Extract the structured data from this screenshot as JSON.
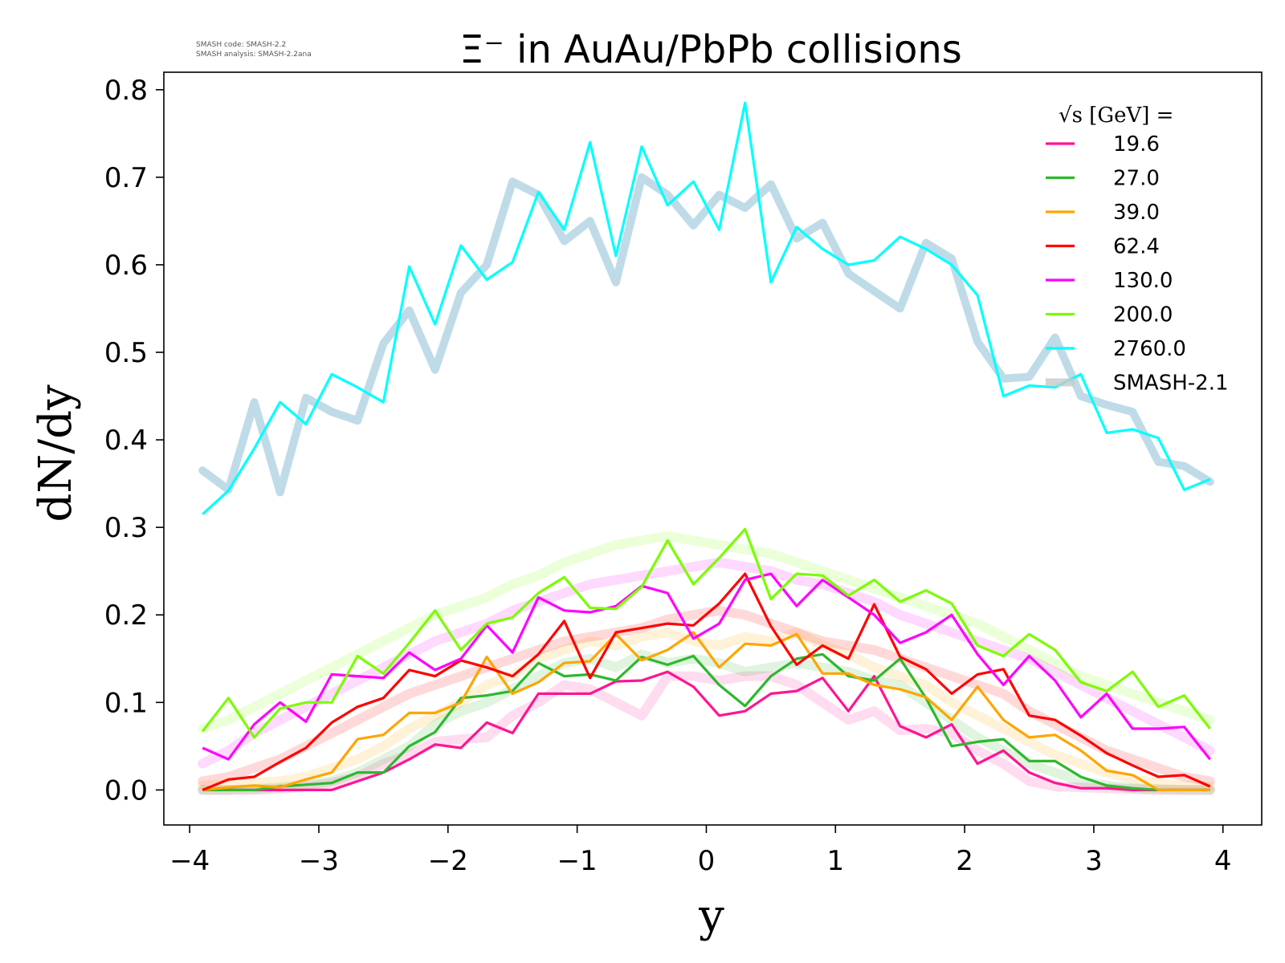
{
  "chart_data": {
    "type": "line",
    "title": "Ξ⁻ in AuAu/PbPb collisions",
    "xlabel": "y",
    "ylabel": "dN/dy",
    "xlim": [
      -4.2,
      4.3
    ],
    "ylim": [
      -0.04,
      0.82
    ],
    "xticks": [
      "−4",
      "−3",
      "−2",
      "−1",
      "0",
      "1",
      "2",
      "3",
      "4"
    ],
    "yticks": [
      "0.0",
      "0.1",
      "0.2",
      "0.3",
      "0.4",
      "0.5",
      "0.6",
      "0.7",
      "0.8"
    ],
    "grid": false,
    "legend_position": "top-right",
    "legend_title": "√s [GeV] =",
    "annotation": {
      "line1": "SMASH code:      SMASH-2.2",
      "line2": "SMASH analysis: SMASH-2.2ana"
    },
    "x": [
      -3.9,
      -3.7,
      -3.5,
      -3.3,
      -3.1,
      -2.9,
      -2.7,
      -2.5,
      -2.3,
      -2.1,
      -1.9,
      -1.7,
      -1.5,
      -1.3,
      -1.1,
      -0.9,
      -0.7,
      -0.5,
      -0.3,
      -0.1,
      0.1,
      0.3,
      0.5,
      0.7,
      0.9,
      1.1,
      1.3,
      1.5,
      1.7,
      1.9,
      2.1,
      2.3,
      2.5,
      2.7,
      2.9,
      3.1,
      3.3,
      3.5,
      3.7,
      3.9
    ],
    "series": [
      {
        "name": "19.6",
        "color": "#ff1493",
        "values": [
          0.0,
          0.0,
          0.0,
          0.0,
          0.0,
          0.0,
          0.01,
          0.02,
          0.035,
          0.052,
          0.048,
          0.077,
          0.065,
          0.11,
          0.11,
          0.11,
          0.124,
          0.125,
          0.135,
          0.118,
          0.085,
          0.09,
          0.11,
          0.113,
          0.128,
          0.09,
          0.13,
          0.073,
          0.06,
          0.075,
          0.03,
          0.045,
          0.02,
          0.008,
          0.002,
          0.002,
          0.0,
          0.0,
          0.0,
          0.0
        ],
        "reference": [
          0.0,
          0.0,
          0.0,
          0.001,
          0.004,
          0.008,
          0.015,
          0.03,
          0.04,
          0.055,
          0.058,
          0.06,
          0.085,
          0.1,
          0.12,
          0.115,
          0.1,
          0.085,
          0.13,
          0.13,
          0.125,
          0.13,
          0.13,
          0.12,
          0.1,
          0.08,
          0.09,
          0.068,
          0.07,
          0.065,
          0.045,
          0.03,
          0.01,
          0.004,
          0.003,
          0.002,
          0.001,
          0.0,
          0.0,
          0.0
        ]
      },
      {
        "name": "27.0",
        "color": "#2db82d",
        "values": [
          0.0,
          0.0,
          0.0,
          0.004,
          0.006,
          0.008,
          0.02,
          0.02,
          0.05,
          0.066,
          0.105,
          0.108,
          0.113,
          0.145,
          0.13,
          0.132,
          0.125,
          0.152,
          0.143,
          0.153,
          0.12,
          0.096,
          0.13,
          0.15,
          0.155,
          0.13,
          0.125,
          0.15,
          0.105,
          0.05,
          0.055,
          0.058,
          0.033,
          0.033,
          0.015,
          0.005,
          0.002,
          0.0,
          0.0,
          0.0
        ],
        "reference": [
          0.0,
          0.0,
          0.001,
          0.003,
          0.006,
          0.01,
          0.02,
          0.035,
          0.05,
          0.075,
          0.09,
          0.1,
          0.115,
          0.13,
          0.145,
          0.15,
          0.14,
          0.155,
          0.145,
          0.15,
          0.145,
          0.135,
          0.14,
          0.145,
          0.14,
          0.135,
          0.125,
          0.12,
          0.1,
          0.08,
          0.06,
          0.045,
          0.03,
          0.02,
          0.01,
          0.005,
          0.002,
          0.001,
          0.0,
          0.0
        ]
      },
      {
        "name": "39.0",
        "color": "#ffa500",
        "values": [
          0.0,
          0.003,
          0.005,
          0.003,
          0.012,
          0.02,
          0.058,
          0.063,
          0.088,
          0.088,
          0.1,
          0.152,
          0.11,
          0.123,
          0.145,
          0.147,
          0.178,
          0.148,
          0.16,
          0.18,
          0.14,
          0.167,
          0.165,
          0.178,
          0.133,
          0.133,
          0.12,
          0.115,
          0.106,
          0.08,
          0.118,
          0.08,
          0.06,
          0.063,
          0.045,
          0.022,
          0.017,
          0.0,
          0.0,
          0.0
        ],
        "reference": [
          0.005,
          0.006,
          0.008,
          0.01,
          0.015,
          0.025,
          0.035,
          0.05,
          0.07,
          0.085,
          0.1,
          0.12,
          0.13,
          0.15,
          0.16,
          0.17,
          0.165,
          0.175,
          0.18,
          0.17,
          0.165,
          0.175,
          0.17,
          0.18,
          0.165,
          0.155,
          0.14,
          0.13,
          0.12,
          0.1,
          0.085,
          0.07,
          0.055,
          0.04,
          0.03,
          0.02,
          0.012,
          0.008,
          0.005,
          0.004
        ]
      },
      {
        "name": "62.4",
        "color": "#ff0000",
        "values": [
          0.0,
          0.012,
          0.015,
          0.032,
          0.048,
          0.077,
          0.095,
          0.105,
          0.137,
          0.13,
          0.148,
          0.14,
          0.13,
          0.155,
          0.193,
          0.128,
          0.18,
          0.185,
          0.19,
          0.188,
          0.213,
          0.247,
          0.187,
          0.143,
          0.165,
          0.15,
          0.212,
          0.152,
          0.138,
          0.11,
          0.132,
          0.138,
          0.085,
          0.08,
          0.062,
          0.042,
          0.028,
          0.015,
          0.017,
          0.004
        ],
        "reference": [
          0.01,
          0.015,
          0.025,
          0.035,
          0.05,
          0.065,
          0.08,
          0.095,
          0.11,
          0.12,
          0.13,
          0.14,
          0.15,
          0.16,
          0.17,
          0.175,
          0.18,
          0.185,
          0.195,
          0.2,
          0.205,
          0.2,
          0.19,
          0.18,
          0.17,
          0.165,
          0.16,
          0.15,
          0.14,
          0.13,
          0.12,
          0.11,
          0.09,
          0.075,
          0.06,
          0.045,
          0.035,
          0.025,
          0.015,
          0.01
        ]
      },
      {
        "name": "130.0",
        "color": "#ff00ff",
        "values": [
          0.048,
          0.035,
          0.075,
          0.1,
          0.078,
          0.132,
          0.13,
          0.128,
          0.157,
          0.137,
          0.15,
          0.188,
          0.157,
          0.22,
          0.205,
          0.203,
          0.21,
          0.233,
          0.225,
          0.173,
          0.19,
          0.24,
          0.247,
          0.21,
          0.24,
          0.22,
          0.2,
          0.168,
          0.18,
          0.2,
          0.155,
          0.12,
          0.153,
          0.125,
          0.083,
          0.11,
          0.07,
          0.07,
          0.072,
          0.035
        ],
        "reference": [
          0.03,
          0.045,
          0.065,
          0.08,
          0.095,
          0.11,
          0.125,
          0.14,
          0.155,
          0.17,
          0.18,
          0.19,
          0.205,
          0.215,
          0.225,
          0.235,
          0.24,
          0.245,
          0.25,
          0.255,
          0.26,
          0.255,
          0.25,
          0.24,
          0.235,
          0.225,
          0.215,
          0.2,
          0.19,
          0.18,
          0.17,
          0.16,
          0.15,
          0.135,
          0.12,
          0.105,
          0.09,
          0.075,
          0.06,
          0.045
        ]
      },
      {
        "name": "200.0",
        "color": "#7cfc00",
        "values": [
          0.067,
          0.105,
          0.06,
          0.093,
          0.1,
          0.1,
          0.153,
          0.133,
          0.168,
          0.205,
          0.16,
          0.19,
          0.197,
          0.225,
          0.243,
          0.208,
          0.207,
          0.232,
          0.285,
          0.235,
          0.265,
          0.298,
          0.218,
          0.247,
          0.245,
          0.222,
          0.24,
          0.215,
          0.228,
          0.213,
          0.165,
          0.153,
          0.178,
          0.16,
          0.123,
          0.113,
          0.135,
          0.095,
          0.108,
          0.07
        ],
        "reference": [
          0.07,
          0.08,
          0.095,
          0.11,
          0.125,
          0.14,
          0.155,
          0.17,
          0.185,
          0.2,
          0.21,
          0.22,
          0.235,
          0.245,
          0.26,
          0.27,
          0.28,
          0.285,
          0.29,
          0.285,
          0.28,
          0.275,
          0.27,
          0.26,
          0.25,
          0.24,
          0.23,
          0.22,
          0.21,
          0.2,
          0.19,
          0.175,
          0.16,
          0.145,
          0.13,
          0.12,
          0.11,
          0.1,
          0.09,
          0.08
        ]
      },
      {
        "name": "2760.0",
        "color": "#00ffff",
        "values": [
          0.315,
          0.342,
          0.39,
          0.443,
          0.418,
          0.475,
          0.46,
          0.443,
          0.598,
          0.532,
          0.622,
          0.583,
          0.603,
          0.683,
          0.64,
          0.74,
          0.61,
          0.735,
          0.668,
          0.695,
          0.64,
          0.785,
          0.58,
          0.643,
          0.618,
          0.6,
          0.605,
          0.632,
          0.618,
          0.6,
          0.565,
          0.45,
          0.462,
          0.46,
          0.475,
          0.408,
          0.412,
          0.402,
          0.343,
          0.355
        ],
        "reference": [
          0.365,
          0.343,
          0.443,
          0.34,
          0.448,
          0.432,
          0.422,
          0.51,
          0.548,
          0.48,
          0.568,
          0.6,
          0.695,
          0.68,
          0.627,
          0.65,
          0.58,
          0.7,
          0.68,
          0.645,
          0.68,
          0.665,
          0.692,
          0.63,
          0.648,
          0.59,
          0.57,
          0.55,
          0.625,
          0.607,
          0.512,
          0.47,
          0.472,
          0.517,
          0.45,
          0.44,
          0.432,
          0.375,
          0.37,
          0.352
        ]
      }
    ],
    "reference_label": "SMASH-2.1",
    "reference_color": "#c8c8c8"
  }
}
